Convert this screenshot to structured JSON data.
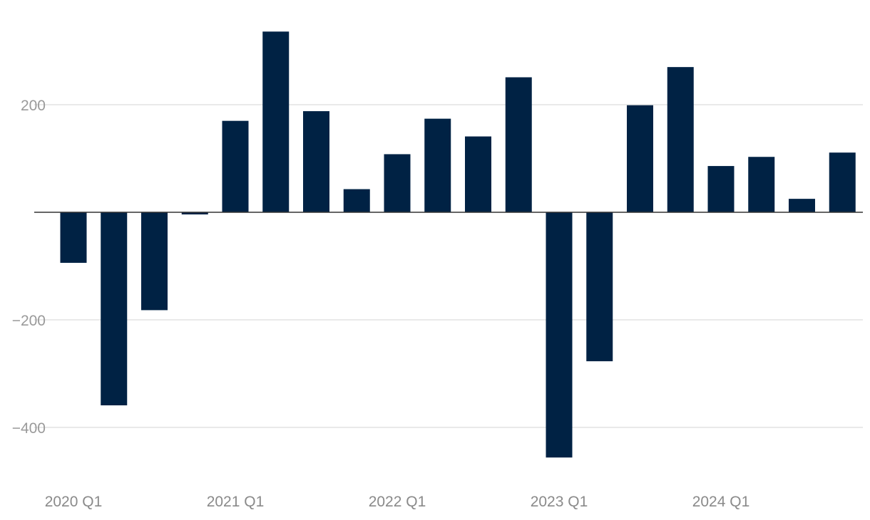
{
  "chart_data": {
    "type": "bar",
    "title": "",
    "xlabel": "",
    "ylabel": "",
    "ylim": [
      -490,
      340
    ],
    "y_ticks": [
      200,
      -200,
      -400
    ],
    "y_tick_labels": [
      "200",
      "−200",
      "−400"
    ],
    "grid": true,
    "bar_color": "#002244",
    "categories": [
      "2020 Q1",
      "2020 Q2",
      "2020 Q3",
      "2020 Q4",
      "2021 Q1",
      "2021 Q2",
      "2021 Q3",
      "2021 Q4",
      "2022 Q1",
      "2022 Q2",
      "2022 Q3",
      "2022 Q4",
      "2023 Q1",
      "2023 Q2",
      "2023 Q3",
      "2023 Q4",
      "2024 Q1",
      "2024 Q2",
      "2024 Q3",
      "2024 Q4"
    ],
    "x_tick_labels": [
      "2020 Q1",
      "2021 Q1",
      "2022 Q1",
      "2023 Q1",
      "2024 Q1"
    ],
    "x_tick_indices": [
      0,
      4,
      8,
      12,
      16
    ],
    "values": [
      -94,
      -359,
      -182,
      -4,
      170,
      336,
      188,
      43,
      108,
      174,
      141,
      251,
      -456,
      -277,
      199,
      270,
      86,
      103,
      25,
      111
    ]
  }
}
